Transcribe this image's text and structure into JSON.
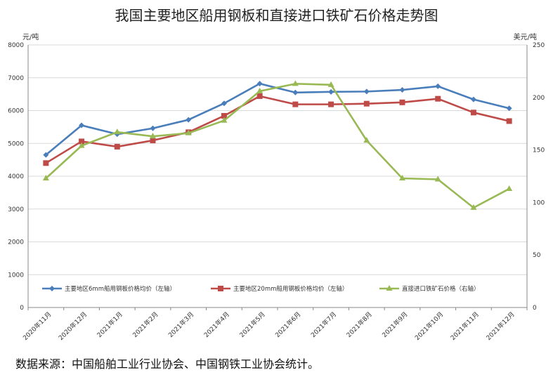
{
  "page": {
    "title": "我国主要地区船用钢板和直接进口铁矿石价格走势图",
    "source": "数据来源：中国船舶工业行业协会、中国钢铁工业协会统计。"
  },
  "chart_data": {
    "type": "line",
    "title": "我国主要地区船用钢板和直接进口铁矿石价格走势图",
    "categories": [
      "2020年11月",
      "2020年12月",
      "2021年1月",
      "2021年2月",
      "2021年3月",
      "2021年4月",
      "2021年5月",
      "2021年6月",
      "2021年7月",
      "2021年8月",
      "2021年9月",
      "2021年10月",
      "2021年11月",
      "2021年12月"
    ],
    "y_left": {
      "unit": "元/吨",
      "min": 0,
      "max": 8000,
      "ticks": [
        0,
        1000,
        2000,
        3000,
        4000,
        5000,
        6000,
        7000,
        8000
      ]
    },
    "y_right": {
      "unit": "美元/吨",
      "min": 0,
      "max": 250,
      "ticks": [
        0,
        50,
        100,
        150,
        200,
        250
      ]
    },
    "grid": true,
    "legend_position": "bottom-inside",
    "series": [
      {
        "name": "主要地区6mm船用钢板价格均价（左轴）",
        "axis": "left",
        "color": "#4a7ebb",
        "marker": "diamond",
        "values": [
          4650,
          5550,
          5280,
          5460,
          5720,
          6220,
          6820,
          6550,
          6570,
          6580,
          6630,
          6740,
          6340,
          6070
        ]
      },
      {
        "name": "主要地区20mm船用钢板价格均价（左轴）",
        "axis": "left",
        "color": "#be4b48",
        "marker": "square",
        "values": [
          4400,
          5060,
          4900,
          5090,
          5340,
          5840,
          6440,
          6190,
          6190,
          6210,
          6250,
          6360,
          5940,
          5680
        ]
      },
      {
        "name": "直接进口铁矿石价格（右轴）",
        "axis": "right",
        "color": "#98b954",
        "marker": "triangle",
        "values": [
          123,
          154,
          167,
          163,
          166,
          178,
          206,
          213,
          212,
          159,
          123,
          122,
          95,
          113
        ]
      }
    ]
  }
}
